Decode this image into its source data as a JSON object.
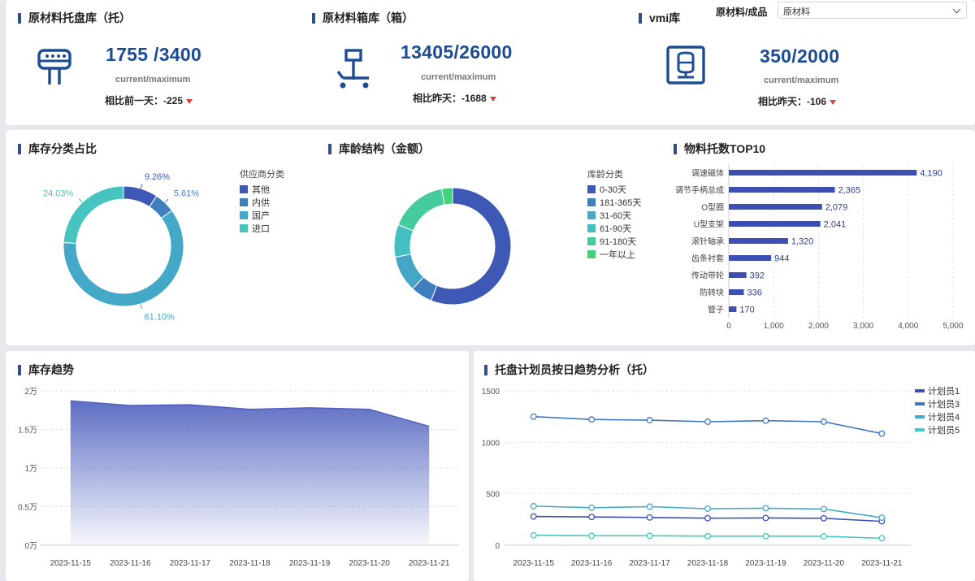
{
  "kpis": [
    {
      "title": "原材料托盘库（托）",
      "value": "1755 /3400",
      "sub": "current/maximum",
      "cmp_label": "相比前一天：",
      "cmp_value": "-225",
      "icon": "pallet-icon"
    },
    {
      "title": "原材料箱库（箱）",
      "value": "13405/26000",
      "sub": "current/maximum",
      "cmp_label": "相比昨天：",
      "cmp_value": "-1688",
      "icon": "hand-truck-icon"
    },
    {
      "title": "vmi库",
      "value": "350/2000",
      "sub": "current/maximum",
      "cmp_label": "相比昨天：",
      "cmp_value": "-106",
      "icon": "storage-icon"
    }
  ],
  "selector": {
    "label": "原材料/成品",
    "value": "原材料"
  },
  "sections": {
    "category": "库存分类占比",
    "age": "库龄结构（金额）",
    "top10": "物料托数TOP10",
    "trend": "库存趋势",
    "planner": "托盘计划员按日趋势分析（托）"
  },
  "colors": {
    "accent": "#2f4f8a",
    "kpi_value": "#1c4c91",
    "down": "#d94040"
  },
  "chart_data": [
    {
      "type": "pie",
      "legend_title": "供应商分类",
      "categories": [
        "其他",
        "内供",
        "国产",
        "进口"
      ],
      "values": [
        9.26,
        5.61,
        61.1,
        24.03
      ],
      "labels": [
        "9.26%",
        "5.61%",
        "61.10%",
        "24.03%"
      ],
      "colors": [
        "#3e58b5",
        "#3f7fc0",
        "#44a8c9",
        "#46c4c0"
      ]
    },
    {
      "type": "pie",
      "legend_title": "库龄分类",
      "categories": [
        "0-30天",
        "181-365天",
        "31-60天",
        "61-90天",
        "91-180天",
        "一年以上"
      ],
      "values": [
        56,
        6,
        10,
        9,
        16,
        3
      ],
      "colors": [
        "#3e58b5",
        "#3f7fc0",
        "#45a6c8",
        "#43bfc2",
        "#46cc9c",
        "#3fd27a"
      ]
    },
    {
      "type": "bar",
      "orientation": "horizontal",
      "categories": [
        "调速磁体",
        "调节手柄总成",
        "O型圈",
        "U型支架",
        "滚针轴承",
        "齿条衬套",
        "传动带轮",
        "防转块",
        "管子"
      ],
      "values": [
        4190,
        2365,
        2079,
        2041,
        1320,
        944,
        392,
        336,
        170
      ],
      "value_labels": [
        "4,190",
        "2,365",
        "2,079",
        "2,041",
        "1,320",
        "944",
        "392",
        "336",
        "170"
      ],
      "xticks": [
        "0",
        "1,000",
        "2,000",
        "3,000",
        "4,000",
        "5,000"
      ],
      "xlim": [
        0,
        5000
      ],
      "color": "#3e4fb3"
    },
    {
      "type": "area",
      "x": [
        "2023-11-15",
        "2023-11-16",
        "2023-11-17",
        "2023-11-18",
        "2023-11-19",
        "2023-11-20",
        "2023-11-21"
      ],
      "values": [
        18700,
        18100,
        18200,
        17600,
        17800,
        17600,
        15400
      ],
      "yticks": [
        "0万",
        "0.5万",
        "1万",
        "1.5万",
        "2万"
      ],
      "ylim": [
        0,
        20000
      ],
      "color": "#5667c1"
    },
    {
      "type": "line",
      "x": [
        "2023-11-15",
        "2023-11-16",
        "2023-11-17",
        "2023-11-18",
        "2023-11-19",
        "2023-11-20",
        "2023-11-21"
      ],
      "yticks": [
        "0",
        "500",
        "1000",
        "1500"
      ],
      "ylim": [
        0,
        1500
      ],
      "series": [
        {
          "name": "计划员1",
          "values": [
            280,
            275,
            270,
            263,
            265,
            262,
            232
          ],
          "color": "#3e4fb3"
        },
        {
          "name": "计划员3",
          "values": [
            1250,
            1222,
            1215,
            1200,
            1210,
            1200,
            1085
          ],
          "color": "#4176c0"
        },
        {
          "name": "计划员4",
          "values": [
            380,
            365,
            375,
            355,
            360,
            352,
            268
          ],
          "color": "#44a8c9"
        },
        {
          "name": "计划员5",
          "values": [
            97,
            92,
            92,
            88,
            88,
            87,
            68
          ],
          "color": "#44c9c0"
        }
      ]
    }
  ]
}
